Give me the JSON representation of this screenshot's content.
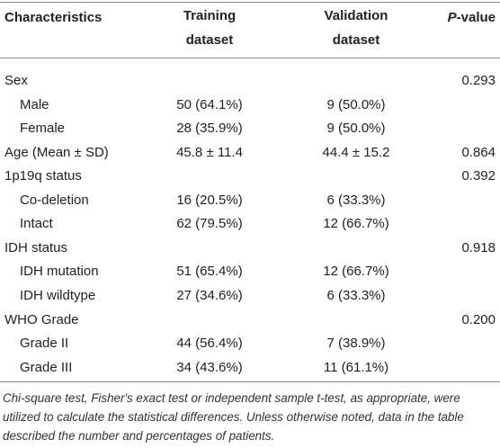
{
  "table": {
    "header": [
      "Characteristics",
      "Training dataset",
      "Validation dataset",
      {
        "italic": "P",
        "rest": "-value"
      }
    ],
    "rows": [
      {
        "level": 0,
        "cells": [
          "Sex",
          null,
          null,
          "0.293"
        ]
      },
      {
        "level": 1,
        "cells": [
          "Male",
          "50 (64.1%)",
          "9 (50.0%)",
          null
        ]
      },
      {
        "level": 1,
        "cells": [
          "Female",
          "28 (35.9%)",
          "9 (50.0%)",
          null
        ]
      },
      {
        "level": 0,
        "cells": [
          "Age (Mean ± SD)",
          "45.8 ± 11.4",
          "44.4 ± 15.2",
          "0.864"
        ]
      },
      {
        "level": 0,
        "cells": [
          "1p19q status",
          null,
          null,
          "0.392"
        ]
      },
      {
        "level": 1,
        "cells": [
          "Co-deletion",
          "16 (20.5%)",
          "6 (33.3%)",
          null
        ]
      },
      {
        "level": 1,
        "cells": [
          "Intact",
          "62 (79.5%)",
          "12 (66.7%)",
          null
        ]
      },
      {
        "level": 0,
        "cells": [
          "IDH status",
          null,
          null,
          "0.918"
        ]
      },
      {
        "level": 1,
        "cells": [
          "IDH mutation",
          "51 (65.4%)",
          "12 (66.7%)",
          null
        ]
      },
      {
        "level": 1,
        "cells": [
          "IDH wildtype",
          "27 (34.6%)",
          "6 (33.3%)",
          null
        ]
      },
      {
        "level": 0,
        "cells": [
          "WHO Grade",
          null,
          null,
          "0.200"
        ]
      },
      {
        "level": 1,
        "cells": [
          "Grade II",
          "44 (56.4%)",
          "7 (38.9%)",
          null
        ]
      },
      {
        "level": 1,
        "cells": [
          "Grade III",
          "34 (43.6%)",
          "11 (61.1%)",
          null
        ]
      }
    ],
    "footnote": "Chi-square test, Fisher's exact test or independent sample t-test, as appropriate, were utilized to calculate the statistical differences. Unless otherwise noted, data in the table described the number and percentages of patients."
  }
}
